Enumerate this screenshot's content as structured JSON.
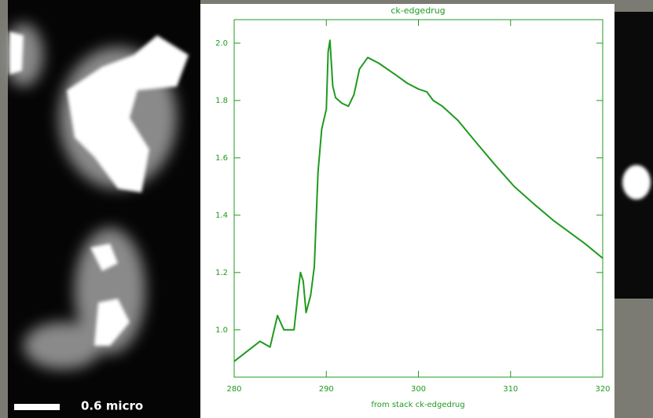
{
  "image": {
    "scale_label": "0.6 micro"
  },
  "chart_data": {
    "type": "line",
    "title": "ck-edgedrug",
    "xlabel": "from stack ck-edgedrug",
    "x": [
      280,
      282.8,
      283.9,
      284.7,
      285.4,
      286.5,
      287.0,
      287.2,
      287.5,
      287.8,
      288.3,
      288.7,
      289.1,
      289.5,
      290.0,
      290.2,
      290.4,
      290.7,
      291.0,
      291.7,
      292.4,
      293.0,
      293.6,
      294.5,
      295.7,
      297.5,
      298.8,
      300.0,
      300.9,
      301.6,
      302.6,
      304.3,
      306.1,
      308.2,
      310.4,
      312.5,
      314.7,
      316.4,
      318.1,
      320
    ],
    "series": [
      {
        "color": "#1f9a1f",
        "values": [
          0.89,
          0.96,
          0.94,
          1.05,
          1.0,
          1.0,
          1.15,
          1.2,
          1.17,
          1.06,
          1.12,
          1.22,
          1.55,
          1.7,
          1.77,
          1.97,
          2.01,
          1.85,
          1.81,
          1.79,
          1.78,
          1.82,
          1.91,
          1.95,
          1.93,
          1.89,
          1.86,
          1.84,
          1.83,
          1.8,
          1.78,
          1.73,
          1.66,
          1.58,
          1.5,
          1.44,
          1.38,
          1.34,
          1.3,
          1.25
        ]
      }
    ],
    "xlim": [
      280,
      320
    ],
    "xticks": [
      280,
      290,
      300,
      310,
      320
    ],
    "ylim": [
      0.835,
      2.082
    ],
    "yticks": [
      {
        "value": 1,
        "label": "1.0"
      },
      1.2,
      1.4,
      1.6,
      1.8,
      {
        "value": 2,
        "label": "2.0"
      }
    ]
  }
}
